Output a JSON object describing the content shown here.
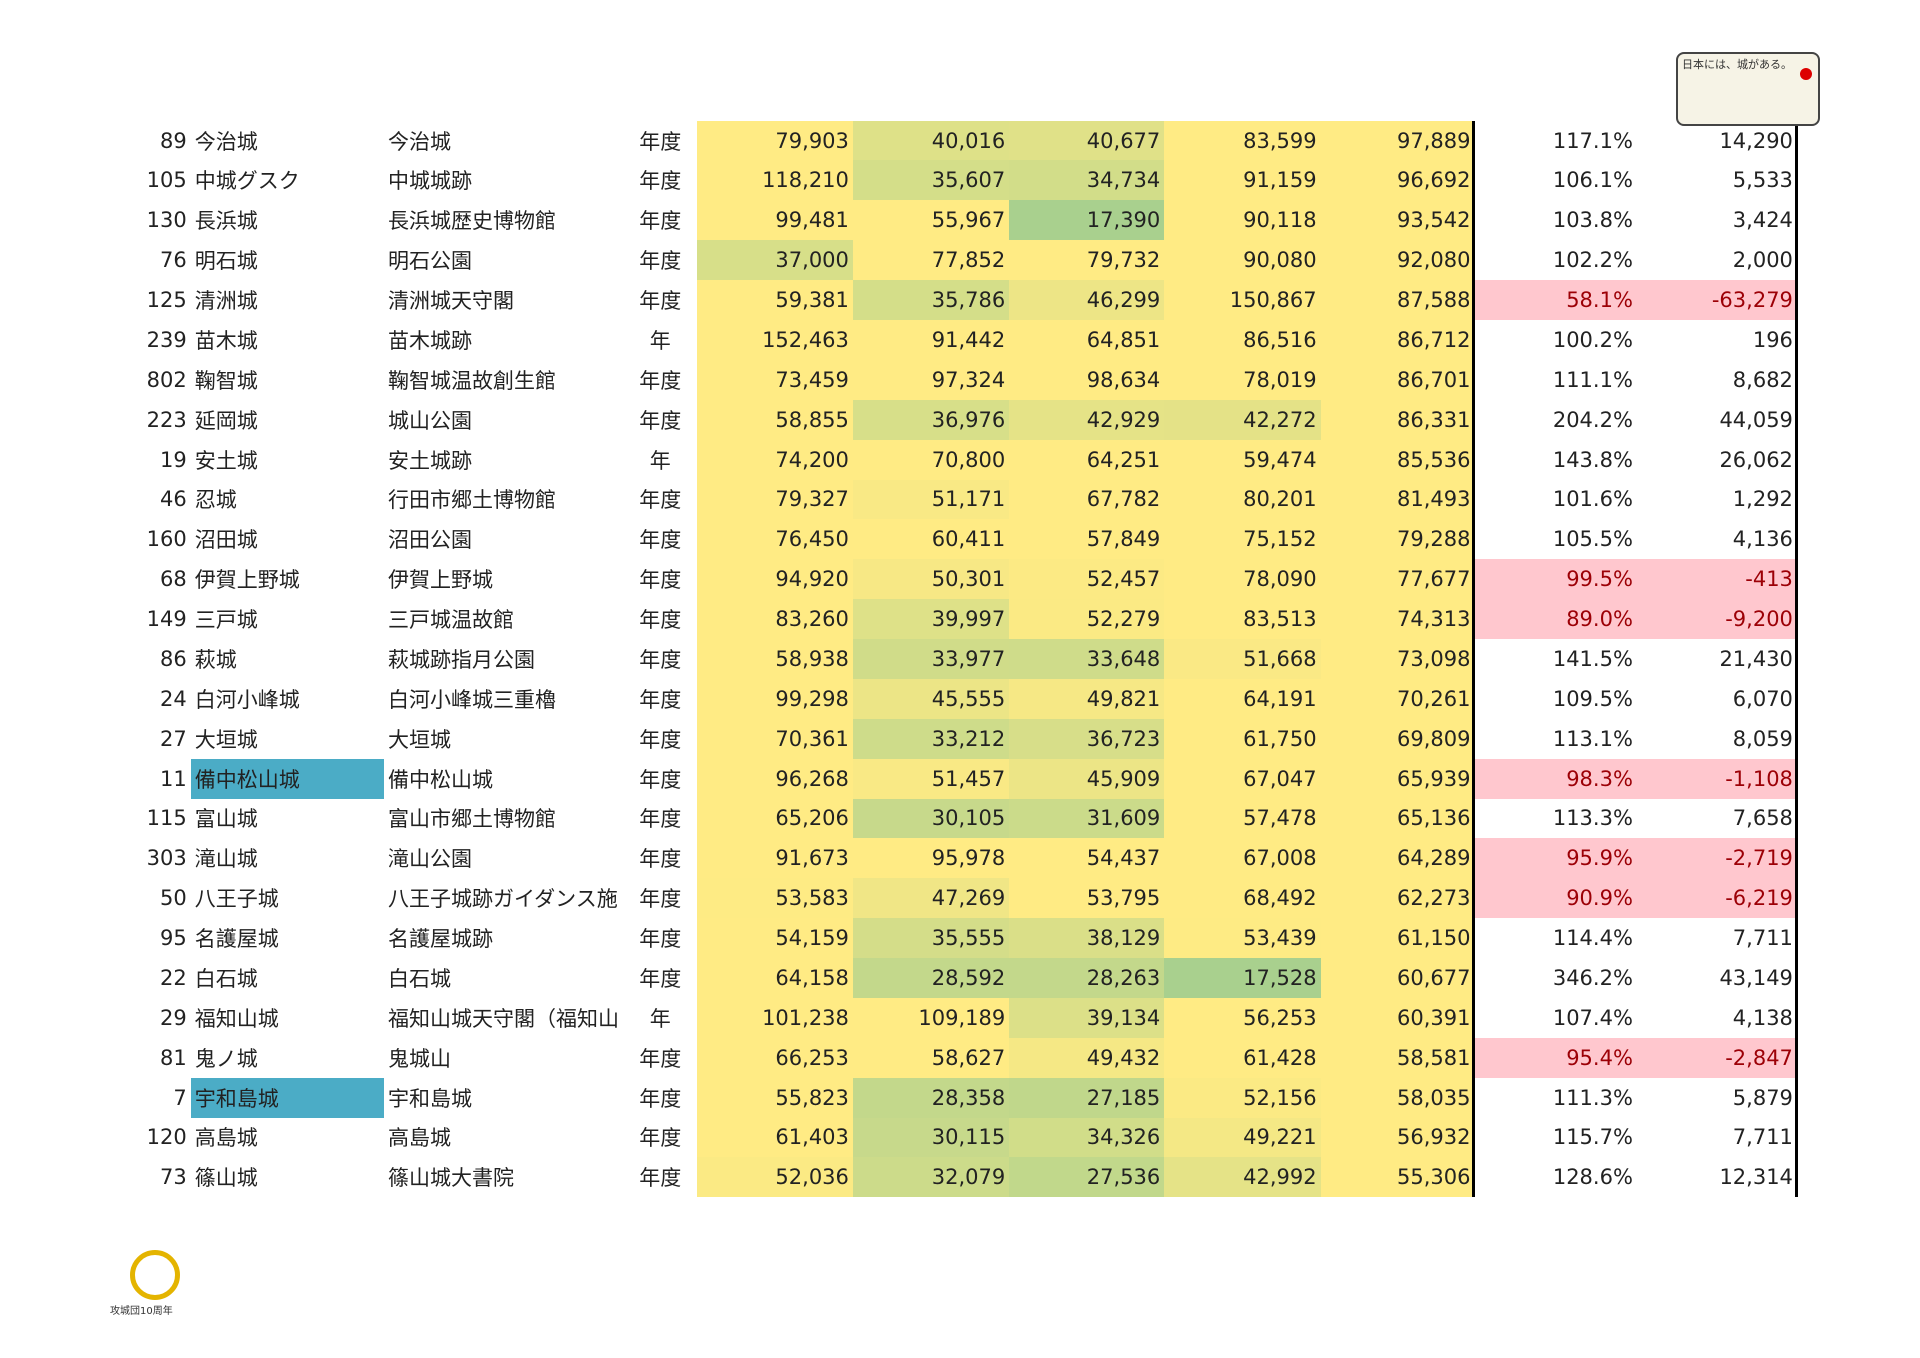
{
  "logo": {
    "tagline": "日本には、城がある。",
    "anniversary": "攻城団10周年"
  },
  "table": {
    "rows": [
      {
        "cells": [
          "89",
          "今治城",
          "今治城",
          "年度",
          "79,903",
          "40,016",
          "40,677",
          "83,599",
          "97,889",
          "117.1%",
          "14,290"
        ]
      },
      {
        "cells": [
          "105",
          "中城グスク",
          "中城城跡",
          "年度",
          "118,210",
          "35,607",
          "34,734",
          "91,159",
          "96,692",
          "106.1%",
          "5,533"
        ]
      },
      {
        "cells": [
          "130",
          "長浜城",
          "長浜城歴史博物館",
          "年度",
          "99,481",
          "55,967",
          "17,390",
          "90,118",
          "93,542",
          "103.8%",
          "3,424"
        ]
      },
      {
        "cells": [
          "76",
          "明石城",
          "明石公園",
          "年度",
          "37,000",
          "77,852",
          "79,732",
          "90,080",
          "92,080",
          "102.2%",
          "2,000"
        ]
      },
      {
        "cells": [
          "125",
          "清洲城",
          "清洲城天守閣",
          "年度",
          "59,381",
          "35,786",
          "46,299",
          "150,867",
          "87,588",
          "58.1%",
          "-63,279"
        ]
      },
      {
        "cells": [
          "239",
          "苗木城",
          "苗木城跡",
          "年",
          "152,463",
          "91,442",
          "64,851",
          "86,516",
          "86,712",
          "100.2%",
          "196"
        ]
      },
      {
        "cells": [
          "802",
          "鞠智城",
          "鞠智城温故創生館",
          "年度",
          "73,459",
          "97,324",
          "98,634",
          "78,019",
          "86,701",
          "111.1%",
          "8,682"
        ]
      },
      {
        "cells": [
          "223",
          "延岡城",
          "城山公園",
          "年度",
          "58,855",
          "36,976",
          "42,929",
          "42,272",
          "86,331",
          "204.2%",
          "44,059"
        ]
      },
      {
        "cells": [
          "19",
          "安土城",
          "安土城跡",
          "年",
          "74,200",
          "70,800",
          "64,251",
          "59,474",
          "85,536",
          "143.8%",
          "26,062"
        ]
      },
      {
        "cells": [
          "46",
          "忍城",
          "行田市郷土博物館",
          "年度",
          "79,327",
          "51,171",
          "67,782",
          "80,201",
          "81,493",
          "101.6%",
          "1,292"
        ]
      },
      {
        "cells": [
          "160",
          "沼田城",
          "沼田公園",
          "年度",
          "76,450",
          "60,411",
          "57,849",
          "75,152",
          "79,288",
          "105.5%",
          "4,136"
        ]
      },
      {
        "cells": [
          "68",
          "伊賀上野城",
          "伊賀上野城",
          "年度",
          "94,920",
          "50,301",
          "52,457",
          "78,090",
          "77,677",
          "99.5%",
          "-413"
        ]
      },
      {
        "cells": [
          "149",
          "三戸城",
          "三戸城温故館",
          "年度",
          "83,260",
          "39,997",
          "52,279",
          "83,513",
          "74,313",
          "89.0%",
          "-9,200"
        ]
      },
      {
        "cells": [
          "86",
          "萩城",
          "萩城跡指月公園",
          "年度",
          "58,938",
          "33,977",
          "33,648",
          "51,668",
          "73,098",
          "141.5%",
          "21,430"
        ]
      },
      {
        "cells": [
          "24",
          "白河小峰城",
          "白河小峰城三重櫓",
          "年度",
          "99,298",
          "45,555",
          "49,821",
          "64,191",
          "70,261",
          "109.5%",
          "6,070"
        ]
      },
      {
        "cells": [
          "27",
          "大垣城",
          "大垣城",
          "年度",
          "70,361",
          "33,212",
          "36,723",
          "61,750",
          "69,809",
          "113.1%",
          "8,059"
        ]
      },
      {
        "cells": [
          "11",
          "備中松山城",
          "備中松山城",
          "年度",
          "96,268",
          "51,457",
          "45,909",
          "67,047",
          "65,939",
          "98.3%",
          "-1,108"
        ],
        "name_color": "#4bacc6"
      },
      {
        "cells": [
          "115",
          "富山城",
          "富山市郷土博物館",
          "年度",
          "65,206",
          "30,105",
          "31,609",
          "57,478",
          "65,136",
          "113.3%",
          "7,658"
        ]
      },
      {
        "cells": [
          "303",
          "滝山城",
          "滝山公園",
          "年度",
          "91,673",
          "95,978",
          "54,437",
          "67,008",
          "64,289",
          "95.9%",
          "-2,719"
        ]
      },
      {
        "cells": [
          "50",
          "八王子城",
          "八王子城跡ガイダンス施",
          "年度",
          "53,583",
          "47,269",
          "53,795",
          "68,492",
          "62,273",
          "90.9%",
          "-6,219"
        ]
      },
      {
        "cells": [
          "95",
          "名護屋城",
          "名護屋城跡",
          "年度",
          "54,159",
          "35,555",
          "38,129",
          "53,439",
          "61,150",
          "114.4%",
          "7,711"
        ]
      },
      {
        "cells": [
          "22",
          "白石城",
          "白石城",
          "年度",
          "64,158",
          "28,592",
          "28,263",
          "17,528",
          "60,677",
          "346.2%",
          "43,149"
        ]
      },
      {
        "cells": [
          "29",
          "福知山城",
          "福知山城天守閣（福知山",
          "年",
          "101,238",
          "109,189",
          "39,134",
          "56,253",
          "60,391",
          "107.4%",
          "4,138"
        ]
      },
      {
        "cells": [
          "81",
          "鬼ノ城",
          "鬼城山",
          "年度",
          "66,253",
          "58,627",
          "49,432",
          "61,428",
          "58,581",
          "95.4%",
          "-2,847"
        ]
      },
      {
        "cells": [
          "7",
          "宇和島城",
          "宇和島城",
          "年度",
          "55,823",
          "28,358",
          "27,185",
          "52,156",
          "58,035",
          "111.3%",
          "5,879"
        ],
        "name_color": "#4bacc6"
      },
      {
        "cells": [
          "120",
          "高島城",
          "高島城",
          "年度",
          "61,403",
          "30,115",
          "34,326",
          "49,221",
          "56,932",
          "115.7%",
          "7,711"
        ]
      },
      {
        "cells": [
          "73",
          "篠山城",
          "篠山城大書院",
          "年度",
          "52,036",
          "32,079",
          "27,536",
          "42,992",
          "55,306",
          "128.6%",
          "12,314"
        ]
      }
    ]
  }
}
